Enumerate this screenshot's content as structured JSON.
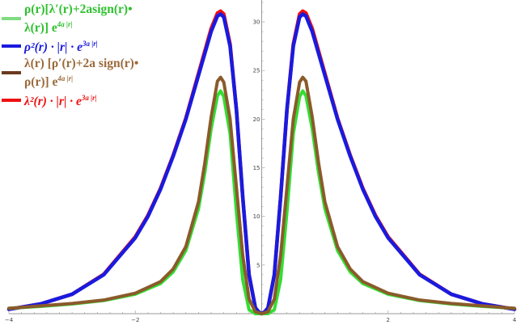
{
  "chart_data": {
    "type": "line",
    "xlim": [
      -4,
      4
    ],
    "ylim": [
      0,
      32
    ],
    "x_ticks": [
      -4,
      -2,
      2,
      4
    ],
    "y_ticks": [
      5,
      10,
      15,
      20,
      25,
      30
    ],
    "grid": false,
    "legend_position": "top-left",
    "series": [
      {
        "name": "ρ(r)[λ′(r)+2asign(r)• λ(r)] e^{4a|r|}",
        "color": "#33dd33",
        "points": [
          [
            0,
            0.0
          ],
          [
            0.1,
            0.0
          ],
          [
            0.2,
            0.4
          ],
          [
            0.3,
            3.5
          ],
          [
            0.4,
            10.5
          ],
          [
            0.5,
            18.5
          ],
          [
            0.6,
            22.3
          ],
          [
            0.65,
            22.9
          ],
          [
            0.7,
            22.4
          ],
          [
            0.8,
            19.0
          ],
          [
            0.9,
            14.5
          ],
          [
            1.0,
            10.8
          ],
          [
            1.2,
            6.5
          ],
          [
            1.4,
            4.3
          ],
          [
            1.6,
            3.1
          ],
          [
            2.0,
            2.0
          ],
          [
            2.5,
            1.35
          ],
          [
            3.0,
            1.0
          ],
          [
            3.5,
            0.75
          ],
          [
            4.0,
            0.55
          ]
        ]
      },
      {
        "name": "ρ²(r) · |r| · e^{3a|r|}",
        "color": "#1a1adf",
        "points": [
          [
            0,
            0.0
          ],
          [
            0.05,
            0.2
          ],
          [
            0.1,
            0.6
          ],
          [
            0.2,
            4.0
          ],
          [
            0.3,
            12.0
          ],
          [
            0.4,
            21.0
          ],
          [
            0.5,
            27.5
          ],
          [
            0.6,
            30.5
          ],
          [
            0.65,
            30.8
          ],
          [
            0.7,
            30.6
          ],
          [
            0.8,
            29.0
          ],
          [
            1.0,
            24.5
          ],
          [
            1.2,
            20.0
          ],
          [
            1.4,
            16.2
          ],
          [
            1.6,
            12.8
          ],
          [
            1.8,
            10.0
          ],
          [
            2.0,
            7.8
          ],
          [
            2.5,
            4.0
          ],
          [
            3.0,
            2.0
          ],
          [
            3.5,
            1.0
          ],
          [
            4.0,
            0.45
          ]
        ]
      },
      {
        "name": "λ(r) [ρ′(r)+2a sign(r)• ρ(r)] e^{4a|r|}",
        "color": "#8b5a2b",
        "points": [
          [
            0,
            0.0
          ],
          [
            0.1,
            0.2
          ],
          [
            0.2,
            1.5
          ],
          [
            0.3,
            6.0
          ],
          [
            0.4,
            13.0
          ],
          [
            0.5,
            20.0
          ],
          [
            0.6,
            23.8
          ],
          [
            0.65,
            24.3
          ],
          [
            0.7,
            23.9
          ],
          [
            0.8,
            20.2
          ],
          [
            0.9,
            15.5
          ],
          [
            1.0,
            11.5
          ],
          [
            1.2,
            6.9
          ],
          [
            1.4,
            4.6
          ],
          [
            1.6,
            3.3
          ],
          [
            2.0,
            2.1
          ],
          [
            2.5,
            1.4
          ],
          [
            3.0,
            1.05
          ],
          [
            3.5,
            0.8
          ],
          [
            4.0,
            0.55
          ]
        ]
      },
      {
        "name": "λ²(r) · |r| · e^{3a|r|}",
        "color": "#ee1111",
        "points": [
          [
            0,
            0.0
          ],
          [
            0.05,
            0.2
          ],
          [
            0.1,
            0.6
          ],
          [
            0.2,
            4.0
          ],
          [
            0.3,
            12.0
          ],
          [
            0.4,
            21.0
          ],
          [
            0.5,
            27.7
          ],
          [
            0.6,
            30.8
          ],
          [
            0.65,
            31.1
          ],
          [
            0.7,
            30.9
          ],
          [
            0.8,
            29.3
          ],
          [
            1.0,
            24.7
          ],
          [
            1.2,
            20.1
          ],
          [
            1.4,
            16.3
          ],
          [
            1.6,
            12.9
          ],
          [
            1.8,
            10.1
          ],
          [
            2.0,
            7.9
          ],
          [
            2.5,
            4.05
          ],
          [
            3.0,
            2.0
          ],
          [
            3.5,
            1.0
          ],
          [
            4.0,
            0.45
          ]
        ]
      }
    ]
  },
  "legend": {
    "items": [
      {
        "label_a": "ρ(r)[λ′(r)+2asign(r)•",
        "label_b": "λ(r)] e",
        "exp": "4a |r|",
        "color": "#7fdc7f"
      },
      {
        "label_a": "ρ²(r) · |r| · e",
        "label_b": "",
        "exp": "3a |r|",
        "color": "#1a1adf"
      },
      {
        "label_a": "λ(r) [ρ′(r)+2a sign(r)•",
        "label_b": "ρ(r)] e",
        "exp": "4a |r|",
        "color": "#6b3a1f"
      },
      {
        "label_a": "λ²(r) · |r| · e",
        "label_b": "",
        "exp": "3a |r|",
        "color": "#ee1111"
      }
    ]
  }
}
